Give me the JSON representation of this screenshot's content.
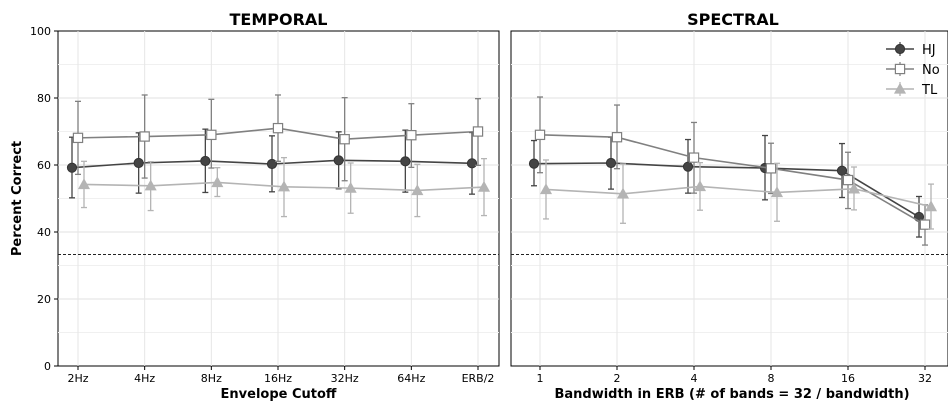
{
  "chart_data": [
    {
      "type": "line",
      "title": "TEMPORAL",
      "xlabel": "Envelope Cutoff",
      "ylabel": "Percent Correct",
      "categories": [
        "2Hz",
        "4Hz",
        "8Hz",
        "16Hz",
        "32Hz",
        "64Hz",
        "ERB/2"
      ],
      "ylim": [
        0,
        100
      ],
      "yticks": [
        0,
        20,
        40,
        60,
        80,
        100
      ],
      "reference_line": 33.3,
      "grid": true,
      "series": [
        {
          "name": "HJ",
          "color": "#444444",
          "marker": "circle",
          "values": [
            59.2,
            60.6,
            61.2,
            60.3,
            61.4,
            61.1,
            60.5
          ],
          "err": [
            [
              50.2,
              68.3
            ],
            [
              51.6,
              69.6
            ],
            [
              51.8,
              70.7
            ],
            [
              52.0,
              68.7
            ],
            [
              52.9,
              69.9
            ],
            [
              51.9,
              70.4
            ],
            [
              51.3,
              69.7
            ]
          ]
        },
        {
          "name": "No",
          "color": "#808080",
          "marker": "square",
          "values": [
            68.1,
            68.5,
            69.0,
            71.0,
            67.7,
            68.9,
            70.0
          ],
          "err": [
            [
              57.2,
              79.0
            ],
            [
              56.1,
              80.9
            ],
            [
              59.1,
              79.6
            ],
            [
              61.1,
              80.9
            ],
            [
              55.3,
              80.1
            ],
            [
              59.3,
              78.3
            ],
            [
              59.9,
              79.8
            ]
          ]
        },
        {
          "name": "TL",
          "color": "#b4b4b4",
          "marker": "triangle",
          "values": [
            54.2,
            53.8,
            54.8,
            53.5,
            53.1,
            52.4,
            53.4
          ],
          "err": [
            [
              47.3,
              61.1
            ],
            [
              46.4,
              61.0
            ],
            [
              50.6,
              59.2
            ],
            [
              44.6,
              62.2
            ],
            [
              45.6,
              60.6
            ],
            [
              44.6,
              60.2
            ],
            [
              44.9,
              61.9
            ]
          ]
        }
      ]
    },
    {
      "type": "line",
      "title": "SPECTRAL",
      "xlabel": "Bandwidth in ERB (# of bands = 32 / bandwidth)",
      "ylabel": "",
      "categories": [
        "1",
        "2",
        "4",
        "8",
        "16",
        "32"
      ],
      "x_scale": "log2",
      "ylim": [
        0,
        100
      ],
      "reference_line": 33.3,
      "grid": true,
      "legend": {
        "position": "top-right",
        "entries": [
          "HJ",
          "No",
          "TL"
        ]
      },
      "series": [
        {
          "name": "HJ",
          "color": "#444444",
          "marker": "circle",
          "values": [
            60.4,
            60.6,
            59.5,
            59.1,
            58.3,
            44.5
          ],
          "err": [
            [
              53.8,
              67.3
            ],
            [
              52.8,
              68.3
            ],
            [
              51.6,
              67.6
            ],
            [
              49.6,
              68.8
            ],
            [
              50.3,
              66.4
            ],
            [
              38.5,
              50.6
            ]
          ]
        },
        {
          "name": "No",
          "color": "#808080",
          "marker": "square",
          "values": [
            69.0,
            68.3,
            62.2,
            59.0,
            55.5,
            42.2
          ],
          "err": [
            [
              57.7,
              80.3
            ],
            [
              58.9,
              77.9
            ],
            [
              51.6,
              72.7
            ],
            [
              51.5,
              66.5
            ],
            [
              47.0,
              63.8
            ],
            [
              36.1,
              48.1
            ]
          ]
        },
        {
          "name": "TL",
          "color": "#b4b4b4",
          "marker": "triangle",
          "values": [
            52.7,
            51.4,
            53.6,
            51.8,
            52.9,
            47.6
          ],
          "err": [
            [
              43.9,
              61.5
            ],
            [
              42.6,
              60.3
            ],
            [
              46.5,
              60.7
            ],
            [
              43.2,
              60.5
            ],
            [
              46.6,
              59.4
            ],
            [
              40.9,
              54.3
            ]
          ]
        }
      ]
    }
  ]
}
